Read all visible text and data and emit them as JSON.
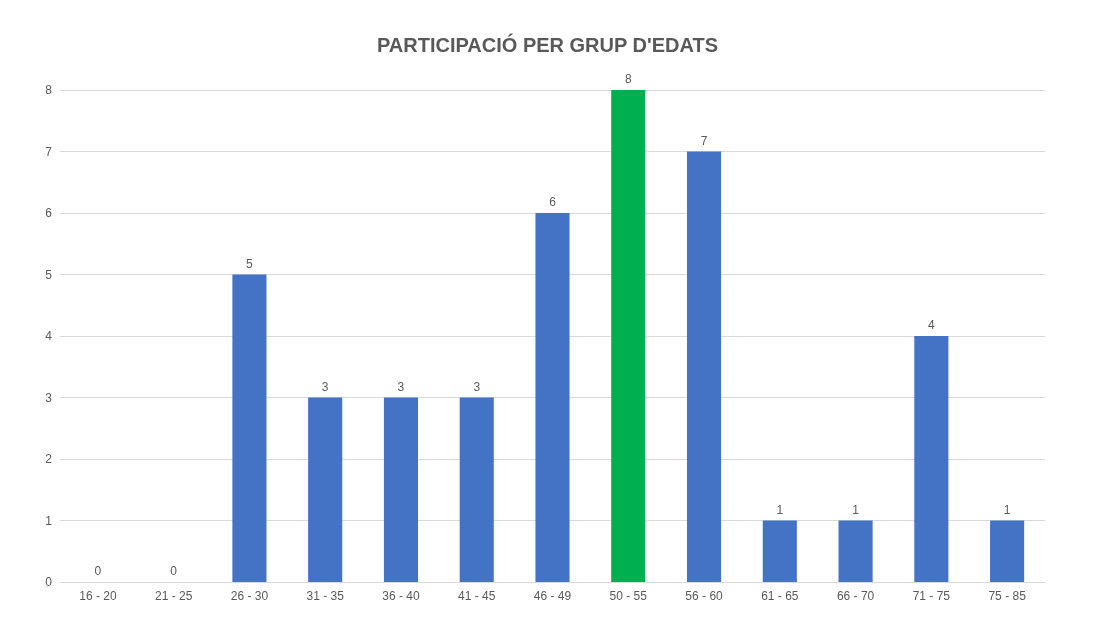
{
  "chart_data": {
    "type": "bar",
    "title": "PARTICIPACIÓ PER GRUP D'EDATS",
    "categories": [
      "16 - 20",
      "21 - 25",
      "26 - 30",
      "31 - 35",
      "36 - 40",
      "41 - 45",
      "46 - 49",
      "50 - 55",
      "56 - 60",
      "61 - 65",
      "66 - 70",
      "71 - 75",
      "75 - 85"
    ],
    "values": [
      0,
      0,
      5,
      3,
      3,
      3,
      6,
      8,
      7,
      1,
      1,
      4,
      1
    ],
    "colors": [
      "#4472c4",
      "#4472c4",
      "#4472c4",
      "#4472c4",
      "#4472c4",
      "#4472c4",
      "#4472c4",
      "#00b050",
      "#4472c4",
      "#4472c4",
      "#4472c4",
      "#4472c4",
      "#4472c4"
    ],
    "ylim": [
      0,
      8
    ],
    "yticks": [
      0,
      1,
      2,
      3,
      4,
      5,
      6,
      7,
      8
    ],
    "grid": "y",
    "data_labels": true
  }
}
